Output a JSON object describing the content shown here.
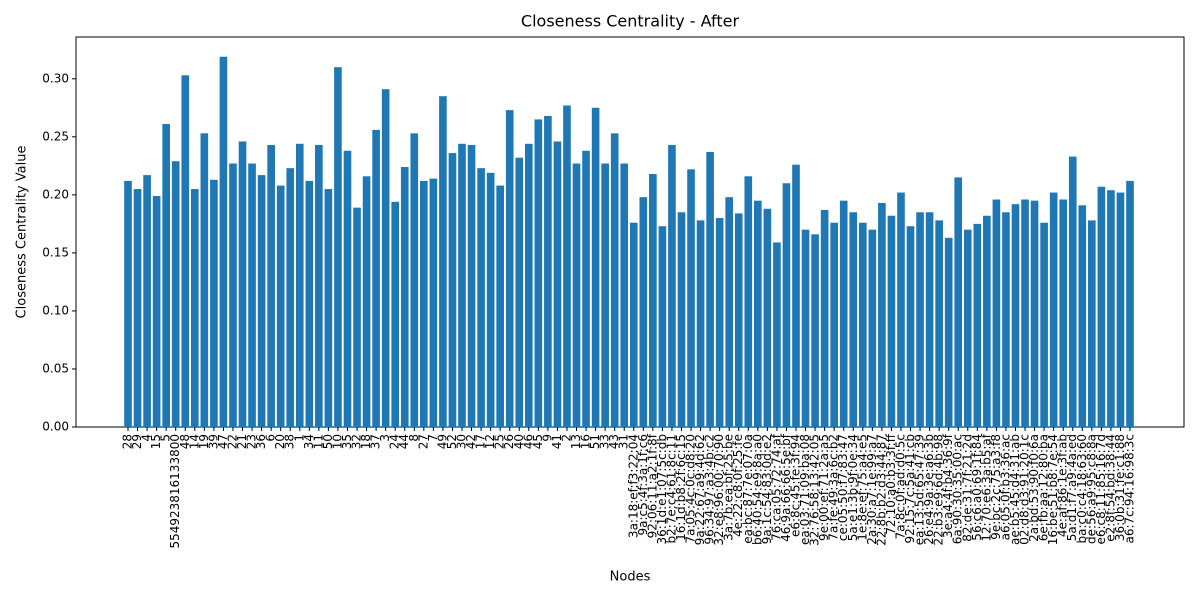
{
  "chart_data": {
    "type": "bar",
    "title": "Closeness Centrality - After",
    "xlabel": "Nodes",
    "ylabel": "Closeness Centrality Value",
    "color": "#1f77b4",
    "categories": [
      "28",
      "29",
      "4",
      "15",
      "5",
      "554923816133800",
      "48",
      "14",
      "19",
      "39",
      "47",
      "22",
      "21",
      "23",
      "36",
      "6",
      "20",
      "38",
      "1",
      "34",
      "11",
      "50",
      "10",
      "35",
      "32",
      "18",
      "37",
      "3",
      "24",
      "44",
      "8",
      "27",
      "7",
      "49",
      "52",
      "30",
      "42",
      "17",
      "12",
      "25",
      "26",
      "40",
      "46",
      "45",
      "9",
      "41",
      "2",
      "13",
      "16",
      "51",
      "33",
      "43",
      "31",
      "3a:18:ef:f3:22:04",
      "9a:c5:4f:3a:1f:c6",
      "92:06:11:a2:1f:8f",
      "36:1d:e1:07:5c:db",
      "b2:7e:c4:61:8c:11",
      "16:1d:b8:2f:6c:15",
      "7a:05:4c:0c:d8:20",
      "9a:22:67:a9:4d:62",
      "96:34:97:a3:4b:c2",
      "32:e8:96:00:70:90",
      "3a:7b:ea:bf:25:be",
      "4e:22:c8:0f:25:fe",
      "ea:bc:87:7e:07:0a",
      "b6:40:54:e9:8a:a0",
      "9a:1c:54:83:0d:e2",
      "76:ca:05:72:74:af",
      "46:9a:66:66:5e:bf",
      "e6:8c:45:fe:3f:94",
      "ea:03:71:09:ba:08",
      "32:76:58:13:42:05",
      "9e:00:ef:71:2a:a5",
      "7a:fe:49:3a:6c:b2",
      "ce:05:50:f7:83:47",
      "5a:e1:3b:9f:0e:34",
      "1e:8e:ef:75:a4:e5",
      "2a:30:a7:1e:99:a7",
      "22:8b:b2:d3:44:87",
      "72:10:a0:b3:3f:ff",
      "7a:8c:0f:ad:d0:5c",
      "92:15:7c:5a:41:cb",
      "ea:13:5d:65:47:39",
      "26:e4:9a:3e:a6:3b",
      "22:b3:e9:6d:4b:98",
      "3e:a4:4f:b4:36:9f",
      "6a:90:30:35:00:ac",
      "82:de:31:7f:21:2d",
      "56:c6:a0:69:1f:84",
      "12:70:e6:3a:b5:af",
      "9e:bc:2c:75:a3:f8",
      "a6:05:0f:b3:36:ac",
      "ae:b5:45:d4:31:ab",
      "02:d8:d3:91:20:1c",
      "2a:bd:53:90:f0:6a",
      "6e:fb:aa:12:80:ba",
      "16:be:51:b8:7e:54",
      "4e:af:86:1e:3f:ab",
      "5a:d1:f7:a9:4a:ed",
      "ba:c0:c4:18:63:60",
      "de:56:a9:95:c8:8a",
      "e6:c8:11:85:16:7d",
      "e2:8f:54:bd:38:44",
      "36:0b:31:fe:c1:88",
      "a6:7c:94:16:98:3c"
    ],
    "values": [
      0.212,
      0.205,
      0.217,
      0.199,
      0.261,
      0.229,
      0.303,
      0.205,
      0.253,
      0.213,
      0.319,
      0.227,
      0.246,
      0.227,
      0.217,
      0.243,
      0.208,
      0.223,
      0.244,
      0.212,
      0.243,
      0.205,
      0.31,
      0.238,
      0.189,
      0.216,
      0.256,
      0.291,
      0.194,
      0.224,
      0.253,
      0.212,
      0.214,
      0.285,
      0.236,
      0.244,
      0.243,
      0.223,
      0.219,
      0.208,
      0.273,
      0.232,
      0.244,
      0.265,
      0.268,
      0.246,
      0.277,
      0.227,
      0.238,
      0.275,
      0.227,
      0.253,
      0.227,
      0.176,
      0.198,
      0.218,
      0.173,
      0.243,
      0.185,
      0.222,
      0.178,
      0.237,
      0.18,
      0.198,
      0.184,
      0.216,
      0.195,
      0.188,
      0.159,
      0.21,
      0.226,
      0.17,
      0.166,
      0.187,
      0.176,
      0.195,
      0.185,
      0.176,
      0.17,
      0.193,
      0.182,
      0.202,
      0.173,
      0.185,
      0.185,
      0.178,
      0.163,
      0.215,
      0.17,
      0.175,
      0.182,
      0.196,
      0.185,
      0.192,
      0.196,
      0.195,
      0.176,
      0.202,
      0.196,
      0.233,
      0.191,
      0.178,
      0.207,
      0.204,
      0.202,
      0.212
    ],
    "ylim": [
      0,
      0.336
    ],
    "yticks": [
      {
        "value": 0,
        "label": "0.00"
      },
      {
        "value": 0.05,
        "label": "0.05"
      },
      {
        "value": 0.1,
        "label": "0.10"
      },
      {
        "value": 0.15,
        "label": "0.15"
      },
      {
        "value": 0.2,
        "label": "0.20"
      },
      {
        "value": 0.25,
        "label": "0.25"
      },
      {
        "value": 0.3,
        "label": "0.30"
      }
    ],
    "grid": false
  }
}
